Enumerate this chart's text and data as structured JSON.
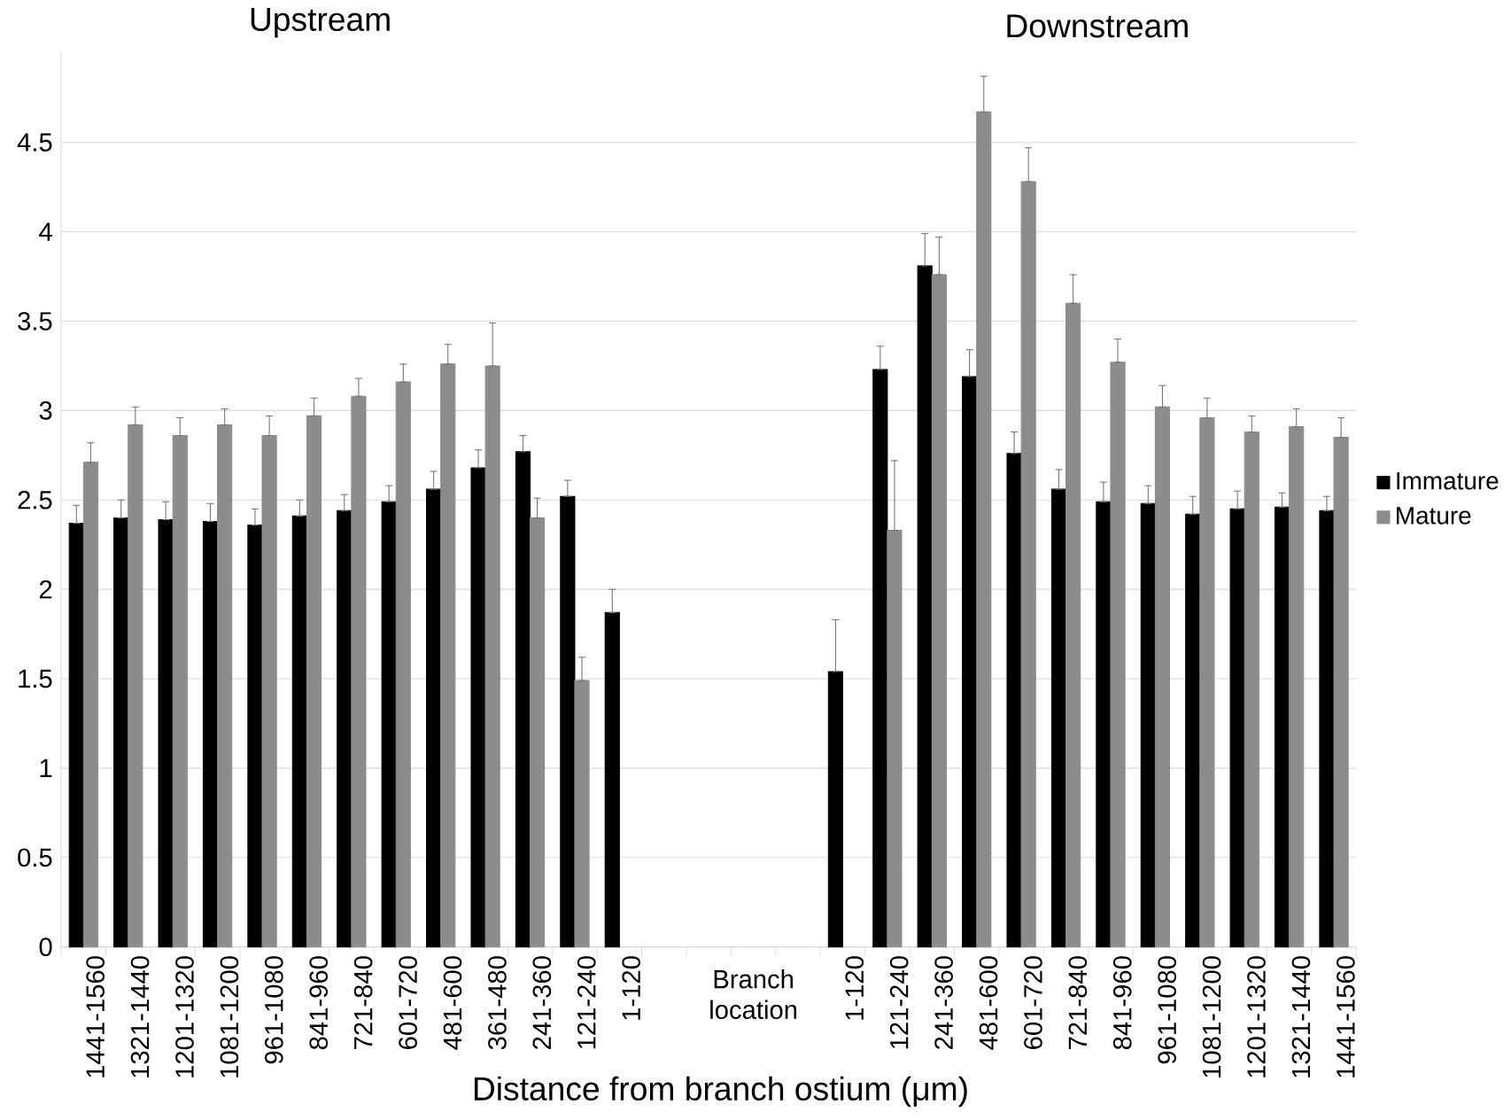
{
  "chart_data": {
    "type": "bar",
    "xlabel": "Distance from branch ostium (μm)",
    "annotations": [
      "Upstream",
      "Downstream"
    ],
    "categories": [
      "1441-1560",
      "1321-1440",
      "1201-1320",
      "1081-1200",
      "961-1080",
      "841-960",
      "721-840",
      "601-720",
      "481-600",
      "361-480",
      "241-360",
      "121-240",
      "1-120",
      null,
      null,
      "Branch location",
      null,
      "1-120",
      "121-240",
      "241-360",
      "481-600",
      "601-720",
      "721-840",
      "841-960",
      "961-1080",
      "1081-1200",
      "1201-1320",
      "1321-1440",
      "1441-1560"
    ],
    "series": [
      {
        "name": "Immature",
        "color": "#000000",
        "values": [
          2.37,
          2.4,
          2.39,
          2.38,
          2.36,
          2.41,
          2.44,
          2.49,
          2.56,
          2.68,
          2.77,
          2.52,
          1.87,
          null,
          null,
          null,
          null,
          1.54,
          3.23,
          3.81,
          3.19,
          2.76,
          2.56,
          2.49,
          2.48,
          2.42,
          2.45,
          2.46,
          2.44
        ],
        "errors": [
          [
            2.37,
            2.47
          ],
          [
            2.4,
            2.5
          ],
          [
            2.39,
            2.49
          ],
          [
            2.38,
            2.48
          ],
          [
            2.36,
            2.45
          ],
          [
            2.41,
            2.5
          ],
          [
            2.44,
            2.53
          ],
          [
            2.49,
            2.58
          ],
          [
            2.56,
            2.66
          ],
          [
            2.68,
            2.78
          ],
          [
            2.77,
            2.86
          ],
          [
            2.52,
            2.61
          ],
          [
            1.87,
            2.0
          ],
          null,
          null,
          null,
          null,
          [
            1.54,
            1.83
          ],
          [
            3.23,
            3.36
          ],
          [
            3.81,
            3.99
          ],
          [
            3.19,
            3.34
          ],
          [
            2.76,
            2.88
          ],
          [
            2.56,
            2.67
          ],
          [
            2.49,
            2.6
          ],
          [
            2.48,
            2.58
          ],
          [
            2.42,
            2.52
          ],
          [
            2.45,
            2.55
          ],
          [
            2.46,
            2.54
          ],
          [
            2.44,
            2.52
          ]
        ]
      },
      {
        "name": "Mature",
        "color": "#8c8c8c",
        "values": [
          2.71,
          2.92,
          2.86,
          2.92,
          2.86,
          2.97,
          3.08,
          3.16,
          3.26,
          3.25,
          2.4,
          1.49,
          null,
          null,
          null,
          null,
          null,
          null,
          2.33,
          3.76,
          4.67,
          4.28,
          3.6,
          3.27,
          3.02,
          2.96,
          2.88,
          2.91,
          2.85
        ],
        "errors": [
          [
            2.71,
            2.82
          ],
          [
            2.92,
            3.02
          ],
          [
            2.86,
            2.96
          ],
          [
            2.92,
            3.01
          ],
          [
            2.86,
            2.97
          ],
          [
            2.97,
            3.07
          ],
          [
            3.08,
            3.18
          ],
          [
            3.16,
            3.26
          ],
          [
            3.26,
            3.37
          ],
          [
            3.25,
            3.49
          ],
          [
            2.4,
            2.51
          ],
          [
            1.49,
            1.62
          ],
          null,
          null,
          null,
          null,
          null,
          null,
          [
            2.33,
            2.72
          ],
          [
            3.76,
            3.97
          ],
          [
            4.67,
            4.87
          ],
          [
            4.28,
            4.47
          ],
          [
            3.6,
            3.76
          ],
          [
            3.27,
            3.4
          ],
          [
            3.02,
            3.14
          ],
          [
            2.96,
            3.07
          ],
          [
            2.88,
            2.97
          ],
          [
            2.91,
            3.01
          ],
          [
            2.85,
            2.96
          ]
        ]
      }
    ],
    "ylim": [
      0,
      5
    ],
    "yticks": [
      0,
      0.5,
      1,
      1.5,
      2,
      2.5,
      3,
      3.5,
      4,
      4.5
    ],
    "grid": "y",
    "legend": "right"
  }
}
